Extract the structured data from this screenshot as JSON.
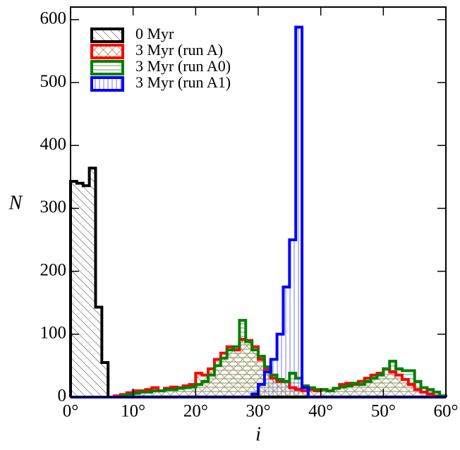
{
  "chart_data": {
    "type": "histogram",
    "xlabel": "i",
    "ylabel": "N",
    "bins": [
      0,
      1,
      2,
      3,
      4,
      5,
      6,
      7,
      8,
      9,
      10,
      11,
      12,
      13,
      14,
      15,
      16,
      17,
      18,
      19,
      20,
      21,
      22,
      23,
      24,
      25,
      26,
      27,
      28,
      29,
      30,
      31,
      32,
      33,
      34,
      35,
      36,
      37,
      38,
      39,
      40,
      41,
      42,
      43,
      44,
      45,
      46,
      47,
      48,
      49,
      50,
      51,
      52,
      53,
      54,
      55,
      56,
      57,
      58,
      59,
      60
    ],
    "xlim": [
      0,
      60
    ],
    "ylim": [
      0,
      620
    ],
    "xticks": [
      {
        "value": 0,
        "label": "0°"
      },
      {
        "value": 10,
        "label": "10°"
      },
      {
        "value": 20,
        "label": "20°"
      },
      {
        "value": 30,
        "label": "30°"
      },
      {
        "value": 40,
        "label": "40°"
      },
      {
        "value": 50,
        "label": "50°"
      },
      {
        "value": 60,
        "label": "60°"
      }
    ],
    "yticks": [
      0,
      100,
      200,
      300,
      400,
      500,
      600
    ],
    "legend": "upper left",
    "series": [
      {
        "name": "0 Myr",
        "color": "#000000",
        "hatch": "\\\\",
        "values": [
          343,
          340,
          336,
          364,
          143,
          55,
          0,
          0,
          0,
          0,
          0,
          0,
          0,
          0,
          0,
          0,
          0,
          0,
          0,
          0,
          0,
          0,
          0,
          0,
          0,
          0,
          0,
          0,
          0,
          0,
          0,
          0,
          0,
          0,
          0,
          0,
          0,
          0,
          0,
          0,
          0,
          0,
          0,
          0,
          0,
          0,
          0,
          0,
          0,
          0,
          0,
          0,
          0,
          0,
          0,
          0,
          0,
          0,
          0,
          0
        ]
      },
      {
        "name": "3 Myr (run A)",
        "color": "#ff0000",
        "hatch": "xx",
        "values": [
          0,
          0,
          0,
          0,
          0,
          0,
          0,
          2,
          4,
          7,
          10,
          10,
          12,
          15,
          10,
          14,
          16,
          15,
          18,
          20,
          38,
          35,
          45,
          60,
          70,
          80,
          75,
          92,
          90,
          80,
          60,
          45,
          30,
          25,
          25,
          15,
          12,
          10,
          12,
          10,
          12,
          10,
          14,
          20,
          22,
          20,
          25,
          30,
          35,
          38,
          45,
          40,
          35,
          28,
          20,
          12,
          8,
          5,
          2,
          0
        ]
      },
      {
        "name": "3 Myr (run A0)",
        "color": "#008000",
        "hatch": "--",
        "values": [
          0,
          0,
          0,
          0,
          0,
          0,
          0,
          0,
          2,
          4,
          6,
          8,
          8,
          10,
          10,
          12,
          12,
          14,
          15,
          16,
          20,
          25,
          35,
          50,
          62,
          75,
          80,
          122,
          88,
          75,
          65,
          48,
          35,
          28,
          25,
          38,
          30,
          18,
          15,
          12,
          12,
          10,
          14,
          16,
          18,
          22,
          20,
          25,
          30,
          35,
          45,
          57,
          45,
          42,
          42,
          25,
          15,
          12,
          8,
          2
        ]
      },
      {
        "name": "3 Myr (run A1)",
        "color": "#0000ff",
        "hatch": "||",
        "values": [
          0,
          0,
          0,
          0,
          0,
          0,
          0,
          0,
          0,
          0,
          0,
          0,
          0,
          0,
          0,
          0,
          0,
          0,
          0,
          0,
          0,
          0,
          0,
          0,
          0,
          0,
          0,
          0,
          0,
          5,
          20,
          40,
          60,
          100,
          175,
          250,
          588,
          15,
          0,
          0,
          0,
          0,
          0,
          0,
          0,
          0,
          0,
          0,
          0,
          0,
          0,
          0,
          0,
          0,
          0,
          0,
          0,
          0,
          0,
          0
        ]
      }
    ]
  }
}
